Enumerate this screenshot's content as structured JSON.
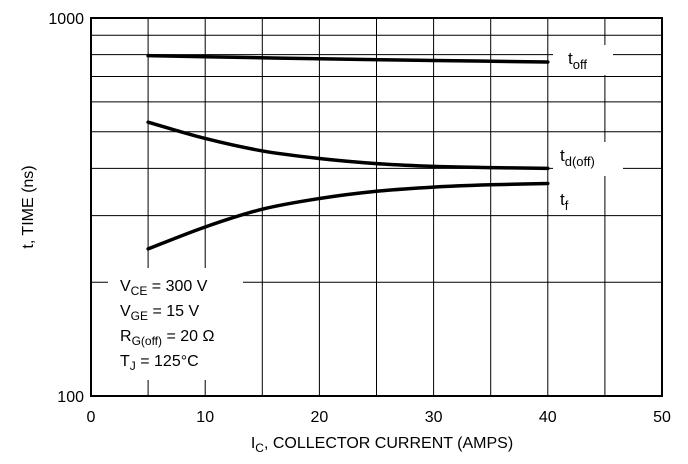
{
  "chart_data": {
    "type": "line",
    "xlabel_main": "I",
    "xlabel_sub": "C",
    "xlabel_rest": ", COLLECTOR CURRENT (AMPS)",
    "ylabel": "t, TIME (ns)",
    "xlim": [
      0,
      50
    ],
    "ylim": [
      100,
      1000
    ],
    "y_scale": "log",
    "grid": true,
    "x_ticks": [
      "0",
      "10",
      "20",
      "30",
      "40",
      "50"
    ],
    "y_ticks": [
      "100",
      "1000"
    ],
    "series": [
      {
        "name": "t_off",
        "label_main": "t",
        "label_sub": "off",
        "x": [
          5,
          10,
          20,
          30,
          40
        ],
        "y": [
          795,
          790,
          780,
          772,
          765
        ]
      },
      {
        "name": "t_d(off)",
        "label_main": "t",
        "label_sub": "d(off)",
        "x": [
          5,
          10,
          15,
          20,
          25,
          30,
          35,
          40
        ],
        "y": [
          530,
          480,
          445,
          425,
          412,
          405,
          402,
          400
        ]
      },
      {
        "name": "t_f",
        "label_main": "t",
        "label_sub": "f",
        "x": [
          5,
          10,
          15,
          20,
          25,
          30,
          35,
          40
        ],
        "y": [
          245,
          280,
          312,
          333,
          348,
          357,
          362,
          365
        ]
      }
    ],
    "annotations": [
      {
        "main": "V",
        "sub": "CE",
        "rest": " = 300 V"
      },
      {
        "main": "V",
        "sub": "GE",
        "rest": " = 15 V"
      },
      {
        "main": "R",
        "sub": "G(off)",
        "rest": " = 20 Ω"
      },
      {
        "main": "T",
        "sub": "J",
        "rest": " = 125°C"
      }
    ],
    "colors": {
      "line": "#000000",
      "grid": "#000000",
      "background": "#ffffff"
    }
  }
}
